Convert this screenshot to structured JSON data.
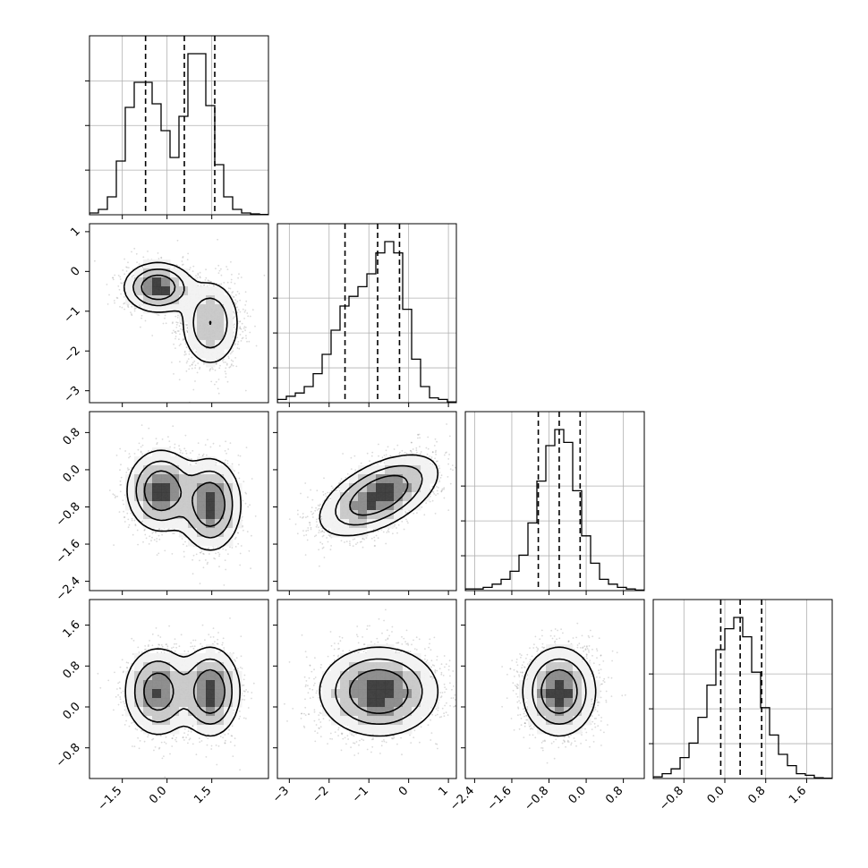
{
  "chart_data": {
    "type": "corner",
    "parameters": 4,
    "hist_grid": true,
    "axes": [
      {
        "lim": [
          -2.6,
          3.4
        ],
        "ticks": [
          -1.5,
          0,
          1.5
        ],
        "tick_labels": [
          "−1.5",
          "0.0",
          "1.5"
        ]
      },
      {
        "lim": [
          -3.3,
          1.2
        ],
        "ticks": [
          -3,
          -2,
          -1,
          0,
          1
        ],
        "tick_labels": [
          "−3",
          "−2",
          "−1",
          "0",
          "1"
        ]
      },
      {
        "lim": [
          -2.6,
          1.25
        ],
        "ticks": [
          -2.4,
          -1.6,
          -0.8,
          0,
          0.8
        ],
        "tick_labels": [
          "−2.4",
          "−1.6",
          "−0.8",
          "0.0",
          "0.8"
        ]
      },
      {
        "lim": [
          -1.4,
          2.1
        ],
        "ticks": [
          -0.8,
          0,
          0.8,
          1.6
        ],
        "tick_labels": [
          "−0.8",
          "0.0",
          "0.8",
          "1.6"
        ]
      }
    ],
    "histograms": [
      {
        "range": [
          -2.6,
          3.4
        ],
        "counts": [
          0.01,
          0.03,
          0.1,
          0.3,
          0.6,
          0.74,
          0.74,
          0.62,
          0.47,
          0.32,
          0.55,
          0.9,
          0.9,
          0.61,
          0.28,
          0.1,
          0.03,
          0.01,
          0.005,
          0.002
        ],
        "quantiles": [
          -0.72,
          0.58,
          1.6
        ]
      },
      {
        "range": [
          -3.3,
          1.2
        ],
        "counts": [
          0.02,
          0.04,
          0.06,
          0.1,
          0.18,
          0.3,
          0.45,
          0.6,
          0.66,
          0.72,
          0.8,
          0.93,
          1.0,
          0.93,
          0.58,
          0.27,
          0.1,
          0.03,
          0.02,
          0.005
        ],
        "quantiles": [
          -1.6,
          -0.78,
          -0.23
        ]
      },
      {
        "range": [
          -2.6,
          1.25
        ],
        "counts": [
          0.01,
          0.01,
          0.02,
          0.04,
          0.07,
          0.12,
          0.22,
          0.42,
          0.68,
          0.9,
          1.0,
          0.92,
          0.62,
          0.34,
          0.17,
          0.07,
          0.04,
          0.02,
          0.01,
          0.003
        ],
        "quantiles": [
          -1.03,
          -0.58,
          -0.13
        ]
      },
      {
        "range": [
          -1.4,
          2.1
        ],
        "counts": [
          0.01,
          0.03,
          0.06,
          0.13,
          0.22,
          0.38,
          0.58,
          0.8,
          0.93,
          1.0,
          0.88,
          0.66,
          0.44,
          0.27,
          0.15,
          0.08,
          0.03,
          0.02,
          0.005,
          0.002
        ],
        "quantiles": [
          -0.08,
          0.3,
          0.72
        ]
      }
    ],
    "scatter_panels": [
      {
        "row": 1,
        "col": 0,
        "clusters": [
          {
            "cx": -0.3,
            "cy": -0.4,
            "sx": 0.55,
            "sy": 0.3,
            "rho": 0.0,
            "w": 0.5
          },
          {
            "cx": 1.45,
            "cy": -1.3,
            "sx": 0.5,
            "sy": 0.55,
            "rho": 0.0,
            "w": 0.5
          }
        ]
      },
      {
        "row": 2,
        "col": 0,
        "clusters": [
          {
            "cx": -0.2,
            "cy": -0.45,
            "sx": 0.55,
            "sy": 0.42,
            "rho": 0.0,
            "w": 0.5
          },
          {
            "cx": 1.45,
            "cy": -0.75,
            "sx": 0.5,
            "sy": 0.48,
            "rho": 0.0,
            "w": 0.5
          }
        ]
      },
      {
        "row": 2,
        "col": 1,
        "clusters": [
          {
            "cx": -0.75,
            "cy": -0.55,
            "sx": 0.72,
            "sy": 0.42,
            "rho": 0.55,
            "w": 1.0
          }
        ]
      },
      {
        "row": 3,
        "col": 0,
        "clusters": [
          {
            "cx": -0.3,
            "cy": 0.3,
            "sx": 0.55,
            "sy": 0.42,
            "rho": 0.0,
            "w": 0.5
          },
          {
            "cx": 1.45,
            "cy": 0.3,
            "sx": 0.48,
            "sy": 0.42,
            "rho": 0.0,
            "w": 0.5
          }
        ]
      },
      {
        "row": 3,
        "col": 1,
        "clusters": [
          {
            "cx": -0.75,
            "cy": 0.3,
            "sx": 0.72,
            "sy": 0.42,
            "rho": 0.0,
            "w": 1.0
          }
        ]
      },
      {
        "row": 3,
        "col": 2,
        "clusters": [
          {
            "cx": -0.58,
            "cy": 0.3,
            "sx": 0.38,
            "sy": 0.42,
            "rho": 0.0,
            "w": 1.0
          }
        ]
      }
    ]
  }
}
